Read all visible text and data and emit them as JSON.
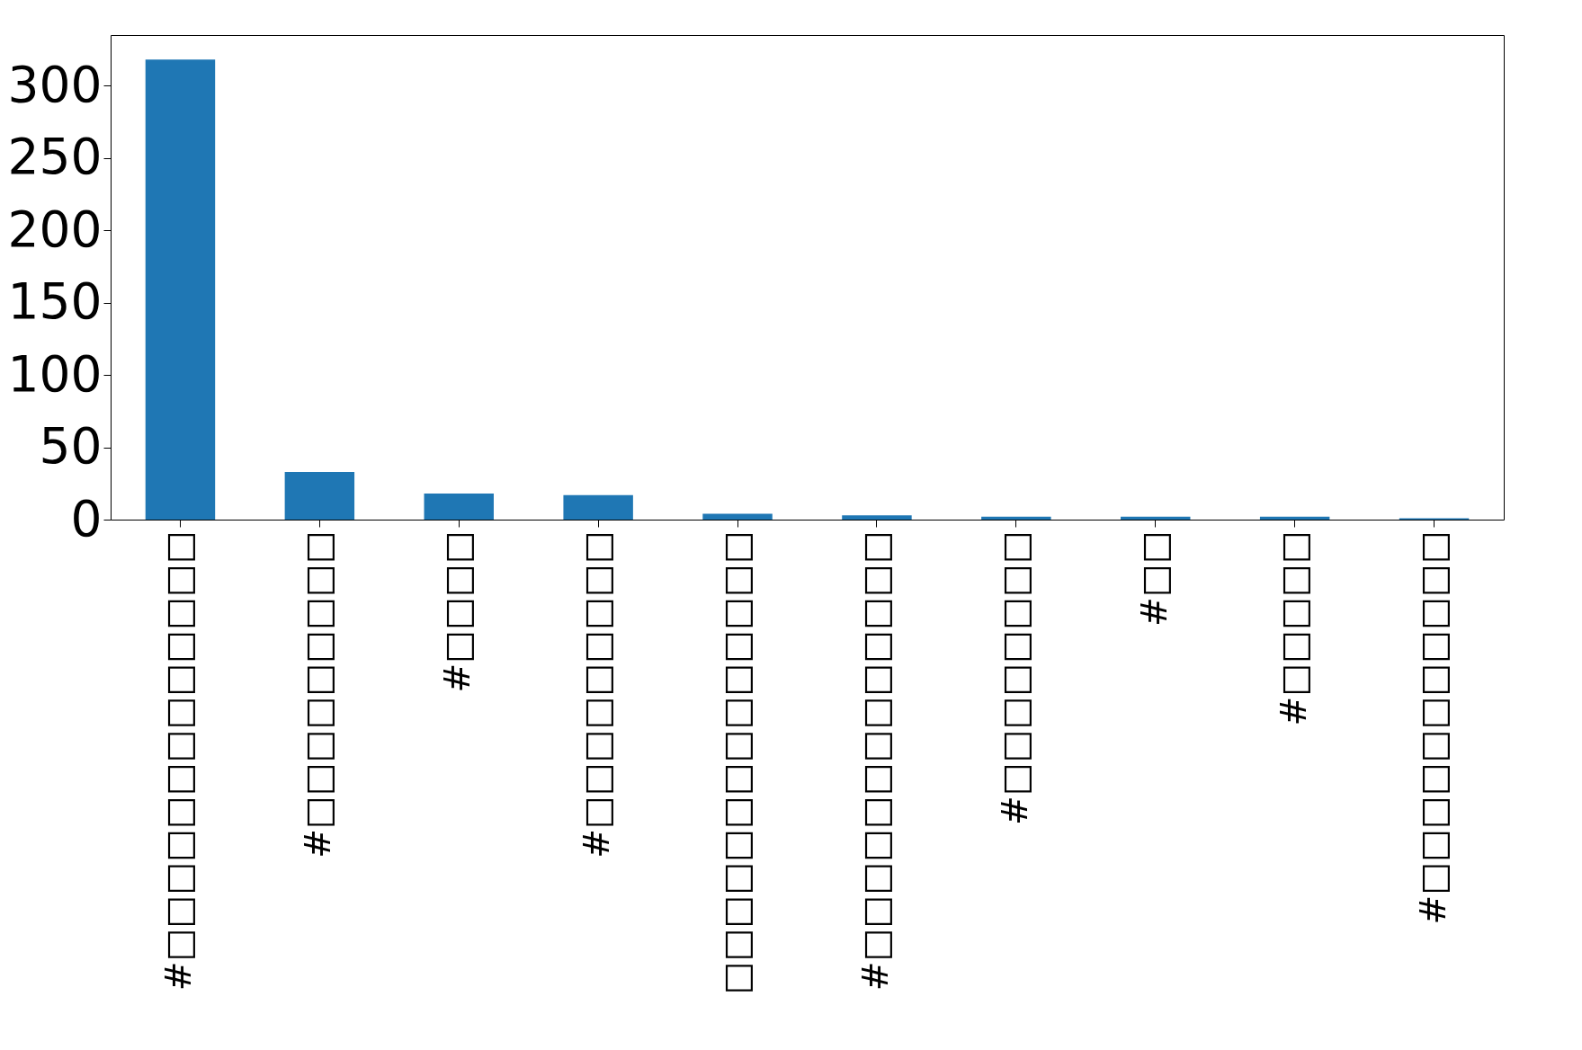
{
  "chart_data": {
    "type": "bar",
    "categories": [
      "#□□□□□□□□□□□□□",
      "#□□□□□□□□□",
      "#□□□□",
      "#□□□□□□□□□",
      "□□□□□□□□□□□□□□",
      "#□□□□□□□□□□□□□",
      "#□□□□□□□□",
      "#□□",
      "#□□□□□",
      "#□□□□□□□□□□□"
    ],
    "values": [
      318,
      33,
      18,
      17,
      4,
      3,
      2,
      2,
      2,
      1
    ],
    "color": "#1f77b4",
    "ylim": [
      0,
      335
    ],
    "yticks": [
      0,
      50,
      100,
      150,
      200,
      250,
      300
    ],
    "grid": false
  }
}
